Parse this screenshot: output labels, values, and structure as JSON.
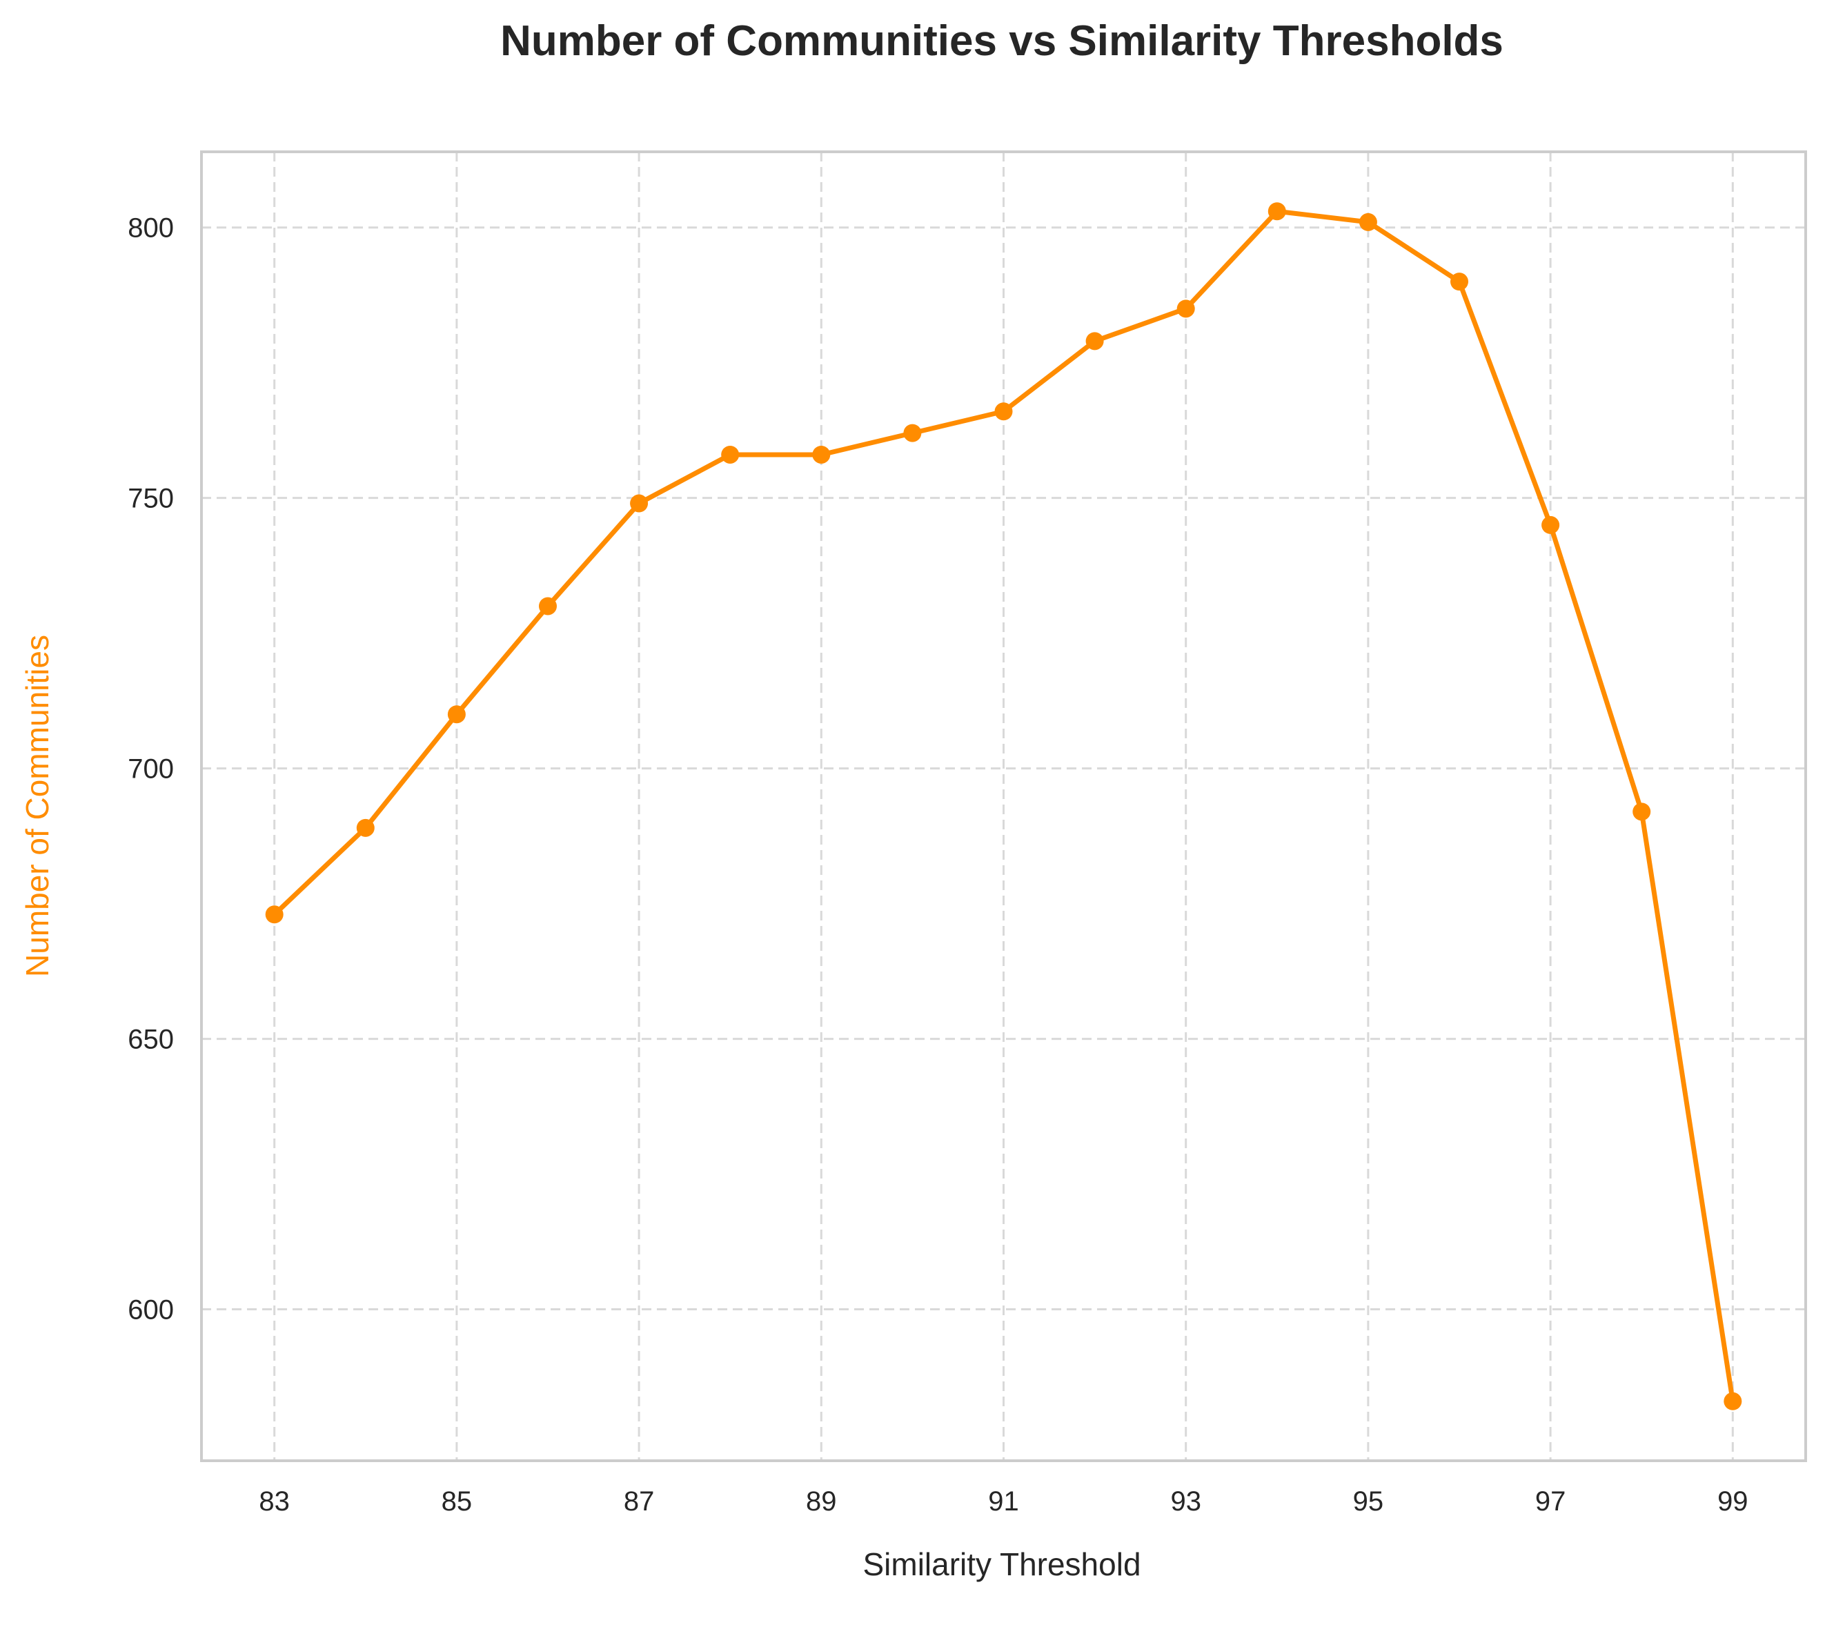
{
  "chart_data": {
    "type": "line",
    "title": "Number of Communities vs Similarity Thresholds",
    "xlabel": "Similarity Threshold",
    "ylabel": "Number of Communities",
    "x": [
      83,
      84,
      85,
      86,
      87,
      88,
      89,
      90,
      91,
      92,
      93,
      94,
      95,
      96,
      97,
      98,
      99
    ],
    "series": [
      {
        "values": [
          673,
          689,
          710,
          730,
          749,
          758,
          758,
          762,
          766,
          779,
          785,
          803,
          801,
          790,
          745,
          692,
          583
        ]
      }
    ],
    "xticks": [
      83,
      85,
      87,
      89,
      91,
      93,
      95,
      97,
      99
    ],
    "yticks": [
      600,
      650,
      700,
      750,
      800
    ],
    "xlim": [
      82.2,
      99.8
    ],
    "ylim": [
      572,
      814
    ],
    "grid": true,
    "marker": "circle",
    "line_color": "#ff8c00",
    "ylabel_color": "#ff8c00"
  }
}
